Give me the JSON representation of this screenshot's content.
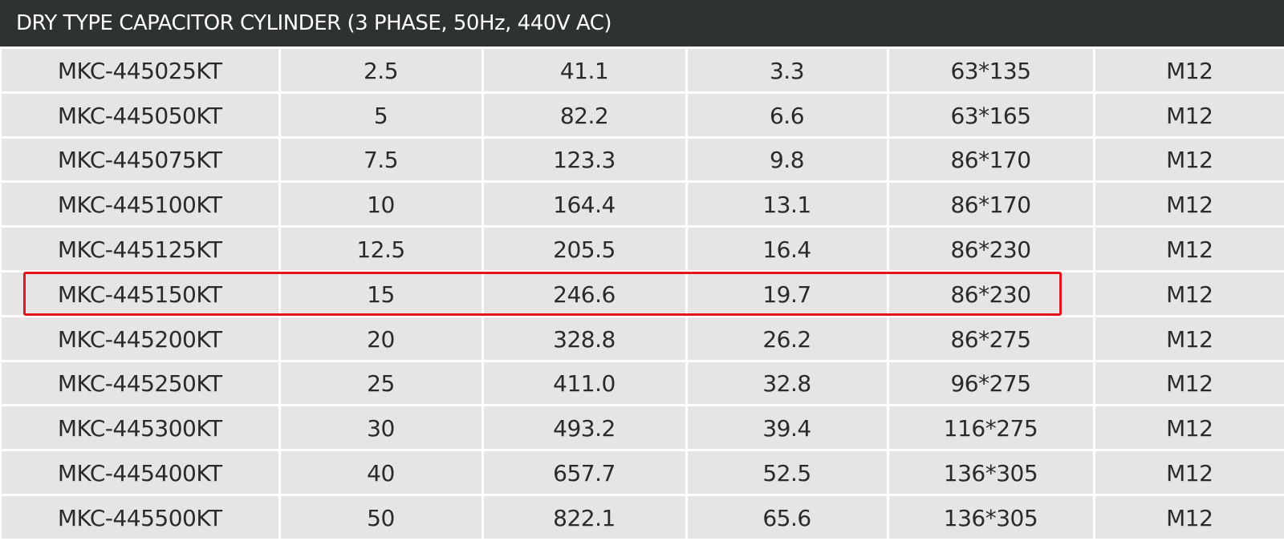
{
  "header": {
    "title": "DRY TYPE CAPACITOR CYLINDER (3 PHASE, 50Hz, 440V AC)"
  },
  "table": {
    "rows": [
      [
        "MKC-445025KT",
        "2.5",
        "41.1",
        "3.3",
        "63*135",
        "M12"
      ],
      [
        "MKC-445050KT",
        "5",
        "82.2",
        "6.6",
        "63*165",
        "M12"
      ],
      [
        "MKC-445075KT",
        "7.5",
        "123.3",
        "9.8",
        "86*170",
        "M12"
      ],
      [
        "MKC-445100KT",
        "10",
        "164.4",
        "13.1",
        "86*170",
        "M12"
      ],
      [
        "MKC-445125KT",
        "12.5",
        "205.5",
        "16.4",
        "86*230",
        "M12"
      ],
      [
        "MKC-445150KT",
        "15",
        "246.6",
        "19.7",
        "86*230",
        "M12"
      ],
      [
        "MKC-445200KT",
        "20",
        "328.8",
        "26.2",
        "86*275",
        "M12"
      ],
      [
        "MKC-445250KT",
        "25",
        "411.0",
        "32.8",
        "96*275",
        "M12"
      ],
      [
        "MKC-445300KT",
        "30",
        "493.2",
        "39.4",
        "116*275",
        "M12"
      ],
      [
        "MKC-445400KT",
        "40",
        "657.7",
        "52.5",
        "136*305",
        "M12"
      ],
      [
        "MKC-445500KT",
        "50",
        "822.1",
        "65.6",
        "136*305",
        "M12"
      ]
    ]
  }
}
